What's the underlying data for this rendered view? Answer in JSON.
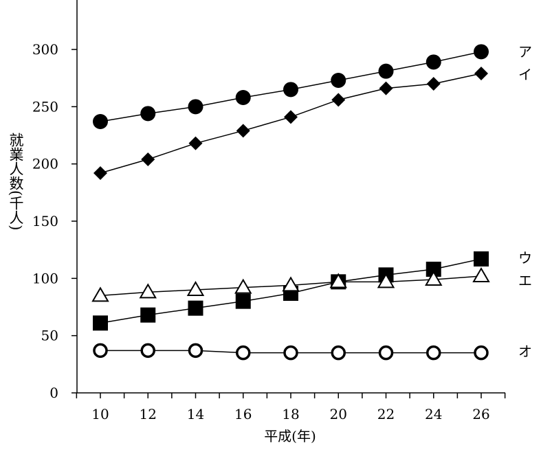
{
  "chart_data": {
    "type": "line",
    "title": "",
    "xlabel": "平成(年)",
    "ylabel": "就業人数(千人)",
    "x": [
      10,
      12,
      14,
      16,
      18,
      20,
      22,
      24,
      26
    ],
    "xlim": [
      9,
      27
    ],
    "ylim": [
      0,
      330
    ],
    "xticks": [
      "10",
      "12",
      "14",
      "16",
      "18",
      "20",
      "22",
      "24",
      "26"
    ],
    "yticks": [
      "0",
      "50",
      "100",
      "150",
      "200",
      "250",
      "300"
    ],
    "grid": false,
    "legend": "none",
    "series": [
      {
        "name": "ア",
        "marker": "filled-circle",
        "values": [
          237,
          244,
          250,
          258,
          265,
          273,
          281,
          289,
          298
        ]
      },
      {
        "name": "イ",
        "marker": "filled-diamond",
        "values": [
          192,
          204,
          218,
          229,
          241,
          256,
          266,
          270,
          279
        ]
      },
      {
        "name": "ウ",
        "marker": "filled-square",
        "values": [
          61,
          68,
          74,
          80,
          87,
          97,
          103,
          108,
          117
        ]
      },
      {
        "name": "エ",
        "marker": "open-triangle",
        "values": [
          85,
          88,
          90,
          92,
          94,
          97,
          97,
          99,
          102
        ]
      },
      {
        "name": "オ",
        "marker": "open-circle",
        "values": [
          37,
          37,
          37,
          35,
          35,
          35,
          35,
          35,
          35
        ]
      }
    ]
  }
}
